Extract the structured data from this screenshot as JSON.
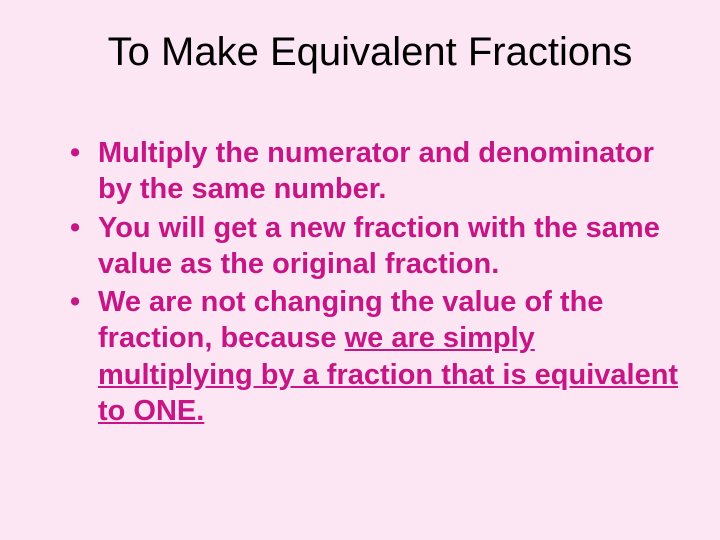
{
  "slide": {
    "title": "To Make Equivalent Fractions",
    "background_color": "#fce6f3",
    "title_color": "#000000",
    "title_fontsize": 40,
    "text_color": "#c71585",
    "text_fontsize": 29,
    "bullets": [
      {
        "plain": "Multiply the numerator and denominator by the same number."
      },
      {
        "plain": "You will get a new fraction with the same value as the original fraction."
      },
      {
        "prefix": "We are not changing the value of the fraction, because ",
        "underlined": "we are simply multiplying by a fraction that is equivalent to ONE."
      }
    ]
  }
}
